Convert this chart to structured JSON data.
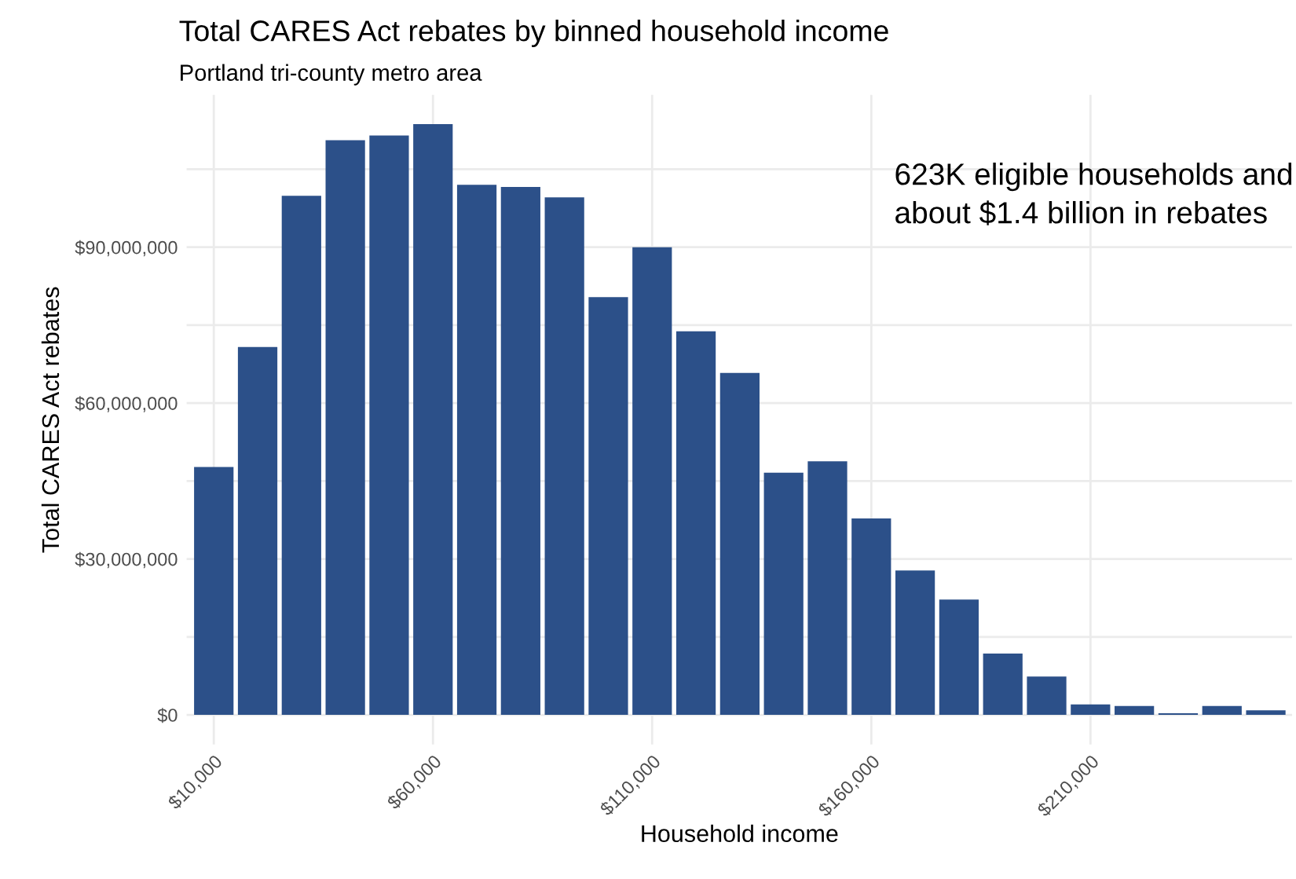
{
  "chart_data": {
    "type": "bar",
    "title": "Total CARES Act rebates by binned household income",
    "subtitle": "Portland tri-county metro area",
    "xlabel": "Household income",
    "ylabel": "Total CARES Act rebates",
    "x": [
      10000,
      20000,
      30000,
      40000,
      50000,
      60000,
      70000,
      80000,
      90000,
      100000,
      110000,
      120000,
      130000,
      140000,
      150000,
      160000,
      170000,
      180000,
      190000,
      200000,
      210000,
      220000,
      230000,
      240000,
      250000
    ],
    "values": [
      47700000,
      70800000,
      99900000,
      110600000,
      111500000,
      113700000,
      102000000,
      101600000,
      99600000,
      80400000,
      90000000,
      73800000,
      65800000,
      46600000,
      48800000,
      37800000,
      27800000,
      22200000,
      11800000,
      7400000,
      2000000,
      1700000,
      300000,
      1700000,
      900000
    ],
    "color": "#2c5089",
    "xlim": [
      3800,
      256000
    ],
    "xticks": [
      {
        "value": 10000,
        "label": "$10,000"
      },
      {
        "value": 60000,
        "label": "$60,000"
      },
      {
        "value": 110000,
        "label": "$110,000"
      },
      {
        "value": 160000,
        "label": "$160,000"
      },
      {
        "value": 210000,
        "label": "$210,000"
      }
    ],
    "ylim": [
      -5700000,
      119300000
    ],
    "yticks": [
      {
        "value": 0,
        "label": "$0"
      },
      {
        "value": 15000000,
        "label": null
      },
      {
        "value": 30000000,
        "label": "$30,000,000"
      },
      {
        "value": 45000000,
        "label": null
      },
      {
        "value": 60000000,
        "label": "$60,000,000"
      },
      {
        "value": 75000000,
        "label": null
      },
      {
        "value": 90000000,
        "label": "$90,000,000"
      },
      {
        "value": 105000000,
        "label": null
      }
    ],
    "grid": true,
    "annotations": [
      "623K eligible households and about $1.4 billion in rebates"
    ]
  }
}
